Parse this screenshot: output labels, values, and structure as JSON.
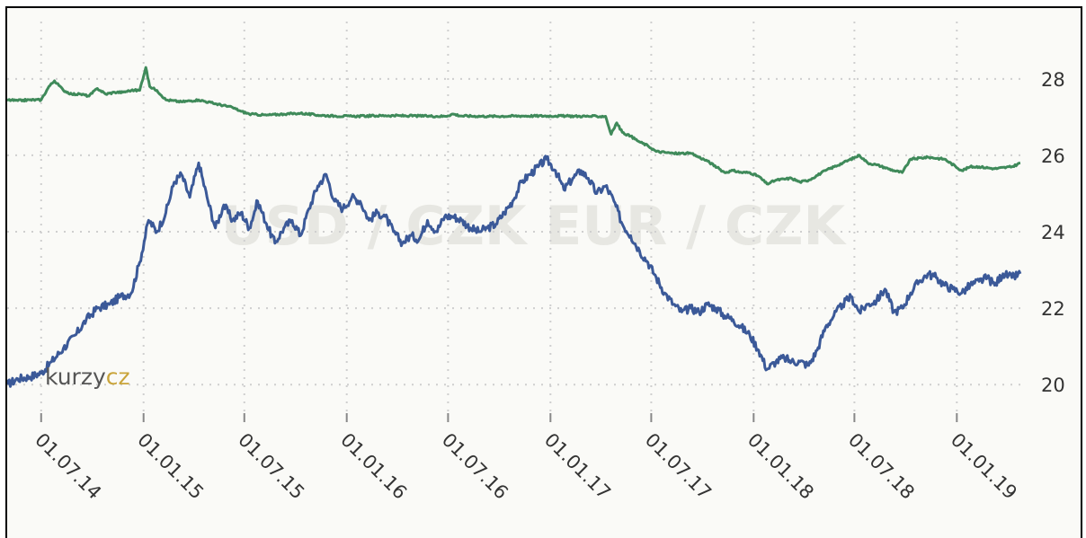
{
  "chart_data": {
    "type": "line",
    "title": "",
    "watermark": "USD / CZK   EUR / CZK",
    "logo": {
      "text_main": "kurzy",
      "text_accent": "cz"
    },
    "xlabel": "",
    "ylabel": "",
    "x_ticks": [
      "01.07.14",
      "01.01.15",
      "01.07.15",
      "01.01.16",
      "01.07.16",
      "01.01.17",
      "01.07.17",
      "01.01.18",
      "01.07.18",
      "01.01.19"
    ],
    "y_ticks": [
      "20",
      "22",
      "24",
      "26",
      "28"
    ],
    "xlim": [
      "2014-05-01",
      "2019-04-30"
    ],
    "ylim": [
      19.3,
      29.5
    ],
    "grid": true,
    "series": [
      {
        "color": "#3b5998",
        "points": [
          [
            "2014-05-01",
            20.0
          ],
          [
            "2014-05-20",
            20.15
          ],
          [
            "2014-06-10",
            20.2
          ],
          [
            "2014-07-01",
            20.3
          ],
          [
            "2014-07-20",
            20.6
          ],
          [
            "2014-08-10",
            20.95
          ],
          [
            "2014-09-01",
            21.3
          ],
          [
            "2014-09-20",
            21.7
          ],
          [
            "2014-10-10",
            22.0
          ],
          [
            "2014-11-01",
            22.1
          ],
          [
            "2014-11-20",
            22.3
          ],
          [
            "2014-12-10",
            22.4
          ],
          [
            "2014-12-25",
            23.2
          ],
          [
            "2015-01-10",
            24.3
          ],
          [
            "2015-01-25",
            24.0
          ],
          [
            "2015-02-10",
            24.5
          ],
          [
            "2015-02-25",
            25.3
          ],
          [
            "2015-03-10",
            25.5
          ],
          [
            "2015-03-25",
            24.9
          ],
          [
            "2015-04-10",
            25.8
          ],
          [
            "2015-04-25",
            24.9
          ],
          [
            "2015-05-10",
            24.1
          ],
          [
            "2015-05-25",
            24.7
          ],
          [
            "2015-06-10",
            24.3
          ],
          [
            "2015-06-25",
            24.5
          ],
          [
            "2015-07-10",
            24.1
          ],
          [
            "2015-07-25",
            24.8
          ],
          [
            "2015-08-10",
            24.2
          ],
          [
            "2015-08-25",
            23.7
          ],
          [
            "2015-09-10",
            24.1
          ],
          [
            "2015-09-25",
            24.3
          ],
          [
            "2015-10-10",
            23.9
          ],
          [
            "2015-10-25",
            24.6
          ],
          [
            "2015-11-10",
            25.2
          ],
          [
            "2015-11-25",
            25.5
          ],
          [
            "2015-12-10",
            24.8
          ],
          [
            "2015-12-25",
            24.6
          ],
          [
            "2016-01-10",
            24.9
          ],
          [
            "2016-01-25",
            24.8
          ],
          [
            "2016-02-10",
            24.3
          ],
          [
            "2016-02-25",
            24.5
          ],
          [
            "2016-03-10",
            24.4
          ],
          [
            "2016-03-25",
            24.0
          ],
          [
            "2016-04-10",
            23.7
          ],
          [
            "2016-04-25",
            23.9
          ],
          [
            "2016-05-10",
            23.8
          ],
          [
            "2016-05-25",
            24.3
          ],
          [
            "2016-06-10",
            24.0
          ],
          [
            "2016-06-25",
            24.4
          ],
          [
            "2016-07-10",
            24.4
          ],
          [
            "2016-07-25",
            24.3
          ],
          [
            "2016-08-10",
            24.1
          ],
          [
            "2016-08-25",
            24.0
          ],
          [
            "2016-09-10",
            24.1
          ],
          [
            "2016-09-25",
            24.2
          ],
          [
            "2016-10-10",
            24.5
          ],
          [
            "2016-10-25",
            24.8
          ],
          [
            "2016-11-10",
            25.3
          ],
          [
            "2016-11-25",
            25.5
          ],
          [
            "2016-12-10",
            25.7
          ],
          [
            "2016-12-25",
            25.9
          ],
          [
            "2017-01-10",
            25.6
          ],
          [
            "2017-01-25",
            25.1
          ],
          [
            "2017-02-10",
            25.4
          ],
          [
            "2017-02-25",
            25.6
          ],
          [
            "2017-03-10",
            25.4
          ],
          [
            "2017-03-25",
            25.0
          ],
          [
            "2017-04-10",
            25.2
          ],
          [
            "2017-04-25",
            24.8
          ],
          [
            "2017-05-10",
            24.2
          ],
          [
            "2017-05-25",
            23.9
          ],
          [
            "2017-06-10",
            23.5
          ],
          [
            "2017-06-25",
            23.2
          ],
          [
            "2017-07-10",
            22.8
          ],
          [
            "2017-07-25",
            22.4
          ],
          [
            "2017-08-10",
            22.1
          ],
          [
            "2017-08-25",
            21.9
          ],
          [
            "2017-09-10",
            22.0
          ],
          [
            "2017-09-25",
            21.9
          ],
          [
            "2017-10-10",
            22.1
          ],
          [
            "2017-10-25",
            22.0
          ],
          [
            "2017-11-10",
            21.8
          ],
          [
            "2017-11-25",
            21.7
          ],
          [
            "2017-12-10",
            21.5
          ],
          [
            "2017-12-25",
            21.3
          ],
          [
            "2018-01-10",
            20.9
          ],
          [
            "2018-01-25",
            20.4
          ],
          [
            "2018-02-10",
            20.6
          ],
          [
            "2018-02-25",
            20.7
          ],
          [
            "2018-03-10",
            20.6
          ],
          [
            "2018-03-25",
            20.6
          ],
          [
            "2018-04-10",
            20.5
          ],
          [
            "2018-04-25",
            20.9
          ],
          [
            "2018-05-10",
            21.5
          ],
          [
            "2018-05-25",
            21.8
          ],
          [
            "2018-06-10",
            22.1
          ],
          [
            "2018-06-25",
            22.3
          ],
          [
            "2018-07-10",
            21.9
          ],
          [
            "2018-07-25",
            22.1
          ],
          [
            "2018-08-10",
            22.2
          ],
          [
            "2018-08-25",
            22.5
          ],
          [
            "2018-09-10",
            21.9
          ],
          [
            "2018-09-25",
            22.0
          ],
          [
            "2018-10-10",
            22.4
          ],
          [
            "2018-10-25",
            22.7
          ],
          [
            "2018-11-10",
            22.9
          ],
          [
            "2018-11-25",
            22.8
          ],
          [
            "2018-12-10",
            22.6
          ],
          [
            "2018-12-25",
            22.5
          ],
          [
            "2019-01-10",
            22.4
          ],
          [
            "2019-01-25",
            22.6
          ],
          [
            "2019-02-10",
            22.7
          ],
          [
            "2019-02-25",
            22.8
          ],
          [
            "2019-03-10",
            22.6
          ],
          [
            "2019-03-25",
            22.9
          ],
          [
            "2019-04-10",
            22.8
          ],
          [
            "2019-04-25",
            22.9
          ]
        ]
      },
      {
        "color": "#3f8a5a",
        "points": [
          [
            "2014-05-01",
            27.45
          ],
          [
            "2014-05-20",
            27.43
          ],
          [
            "2014-06-10",
            27.45
          ],
          [
            "2014-07-01",
            27.45
          ],
          [
            "2014-07-15",
            27.8
          ],
          [
            "2014-07-25",
            27.95
          ],
          [
            "2014-08-10",
            27.7
          ],
          [
            "2014-08-25",
            27.6
          ],
          [
            "2014-09-10",
            27.6
          ],
          [
            "2014-09-25",
            27.55
          ],
          [
            "2014-10-10",
            27.75
          ],
          [
            "2014-10-25",
            27.6
          ],
          [
            "2014-11-10",
            27.65
          ],
          [
            "2014-11-25",
            27.65
          ],
          [
            "2014-12-10",
            27.7
          ],
          [
            "2014-12-25",
            27.7
          ],
          [
            "2015-01-05",
            28.3
          ],
          [
            "2015-01-12",
            27.8
          ],
          [
            "2015-01-25",
            27.7
          ],
          [
            "2015-02-10",
            27.45
          ],
          [
            "2015-03-10",
            27.4
          ],
          [
            "2015-04-10",
            27.45
          ],
          [
            "2015-05-10",
            27.35
          ],
          [
            "2015-06-10",
            27.25
          ],
          [
            "2015-06-25",
            27.15
          ],
          [
            "2015-07-10",
            27.08
          ],
          [
            "2015-08-10",
            27.05
          ],
          [
            "2015-09-10",
            27.08
          ],
          [
            "2015-10-10",
            27.1
          ],
          [
            "2015-11-10",
            27.05
          ],
          [
            "2015-12-10",
            27.03
          ],
          [
            "2016-01-10",
            27.02
          ],
          [
            "2016-03-10",
            27.04
          ],
          [
            "2016-05-10",
            27.03
          ],
          [
            "2016-06-25",
            27.02
          ],
          [
            "2016-07-10",
            27.08
          ],
          [
            "2016-07-25",
            27.03
          ],
          [
            "2016-09-10",
            27.02
          ],
          [
            "2016-11-10",
            27.03
          ],
          [
            "2017-01-10",
            27.03
          ],
          [
            "2017-03-10",
            27.02
          ],
          [
            "2017-04-10",
            27.02
          ],
          [
            "2017-04-20",
            26.55
          ],
          [
            "2017-04-30",
            26.85
          ],
          [
            "2017-05-10",
            26.6
          ],
          [
            "2017-05-25",
            26.5
          ],
          [
            "2017-06-10",
            26.35
          ],
          [
            "2017-06-25",
            26.25
          ],
          [
            "2017-07-10",
            26.1
          ],
          [
            "2017-08-10",
            26.05
          ],
          [
            "2017-09-10",
            26.05
          ],
          [
            "2017-10-10",
            25.85
          ],
          [
            "2017-11-10",
            25.55
          ],
          [
            "2017-11-25",
            25.6
          ],
          [
            "2017-12-10",
            25.55
          ],
          [
            "2017-12-25",
            25.55
          ],
          [
            "2018-01-10",
            25.45
          ],
          [
            "2018-01-25",
            25.25
          ],
          [
            "2018-02-10",
            25.35
          ],
          [
            "2018-03-10",
            25.4
          ],
          [
            "2018-03-25",
            25.3
          ],
          [
            "2018-04-10",
            25.35
          ],
          [
            "2018-05-10",
            25.6
          ],
          [
            "2018-06-10",
            25.8
          ],
          [
            "2018-07-10",
            26.0
          ],
          [
            "2018-07-25",
            25.8
          ],
          [
            "2018-08-10",
            25.75
          ],
          [
            "2018-09-10",
            25.6
          ],
          [
            "2018-09-25",
            25.55
          ],
          [
            "2018-10-10",
            25.9
          ],
          [
            "2018-11-10",
            25.95
          ],
          [
            "2018-12-10",
            25.9
          ],
          [
            "2019-01-10",
            25.6
          ],
          [
            "2019-01-25",
            25.7
          ],
          [
            "2019-02-10",
            25.7
          ],
          [
            "2019-03-10",
            25.65
          ],
          [
            "2019-04-10",
            25.7
          ],
          [
            "2019-04-25",
            25.8
          ]
        ]
      }
    ]
  }
}
